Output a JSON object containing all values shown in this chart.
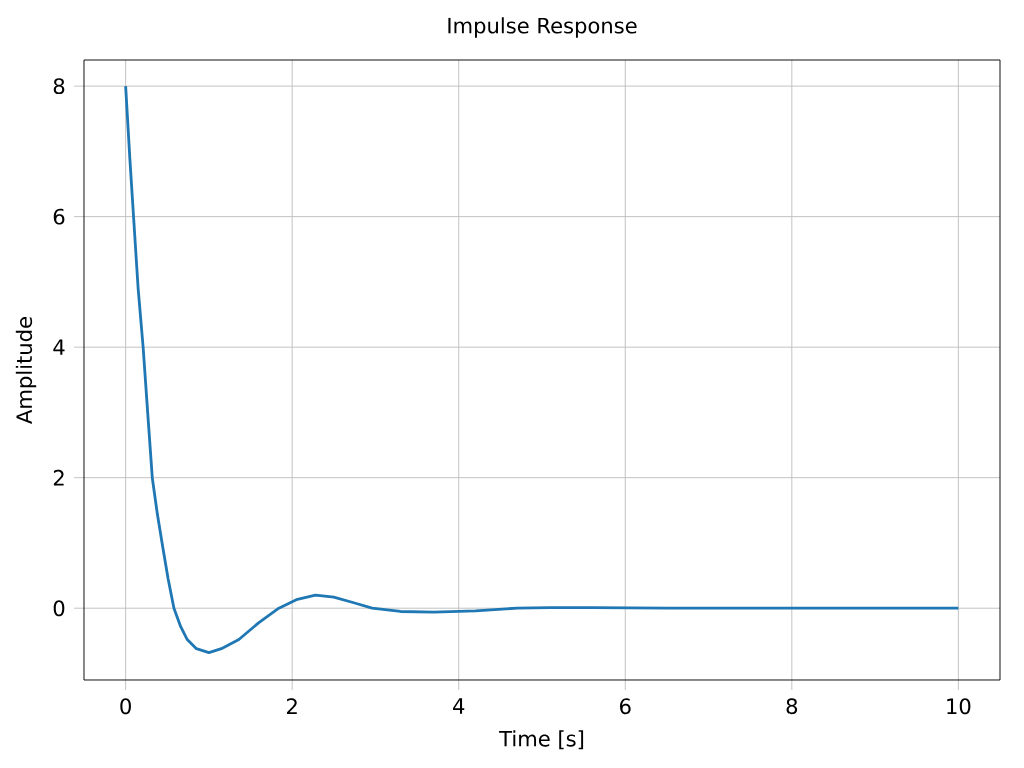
{
  "chart_data": {
    "type": "line",
    "title": "Impulse Response",
    "xlabel": "Time [s]",
    "ylabel": "Amplitude",
    "x": [
      0,
      0.05,
      0.1,
      0.15,
      0.21,
      0.27,
      0.32,
      0.38,
      0.44,
      0.51,
      0.58,
      0.66,
      0.74,
      0.85,
      1.0,
      1.15,
      1.36,
      1.6,
      1.84,
      2.05,
      2.28,
      2.5,
      2.75,
      2.96,
      3.3,
      3.7,
      4.2,
      4.7,
      5.1,
      5.6,
      6.5,
      8,
      10
    ],
    "series": [
      {
        "color": "#1f77b4",
        "values": [
          8,
          6.9,
          5.9,
          4.9,
          4.0,
          2.9,
          2.0,
          1.45,
          0.98,
          0.45,
          0,
          -0.28,
          -0.48,
          -0.62,
          -0.68,
          -0.62,
          -0.48,
          -0.22,
          0,
          0.13,
          0.2,
          0.17,
          0.08,
          0,
          -0.05,
          -0.06,
          -0.04,
          0,
          0.01,
          0.01,
          0,
          0,
          0
        ]
      }
    ],
    "xlim": [
      -0.5,
      10.5
    ],
    "ylim": [
      -1.1,
      8.4
    ],
    "xticks": [
      0,
      2,
      4,
      6,
      8,
      10
    ],
    "yticks": [
      0,
      2,
      4,
      6,
      8
    ],
    "grid": true,
    "line_style": "solid",
    "marker": "none"
  }
}
